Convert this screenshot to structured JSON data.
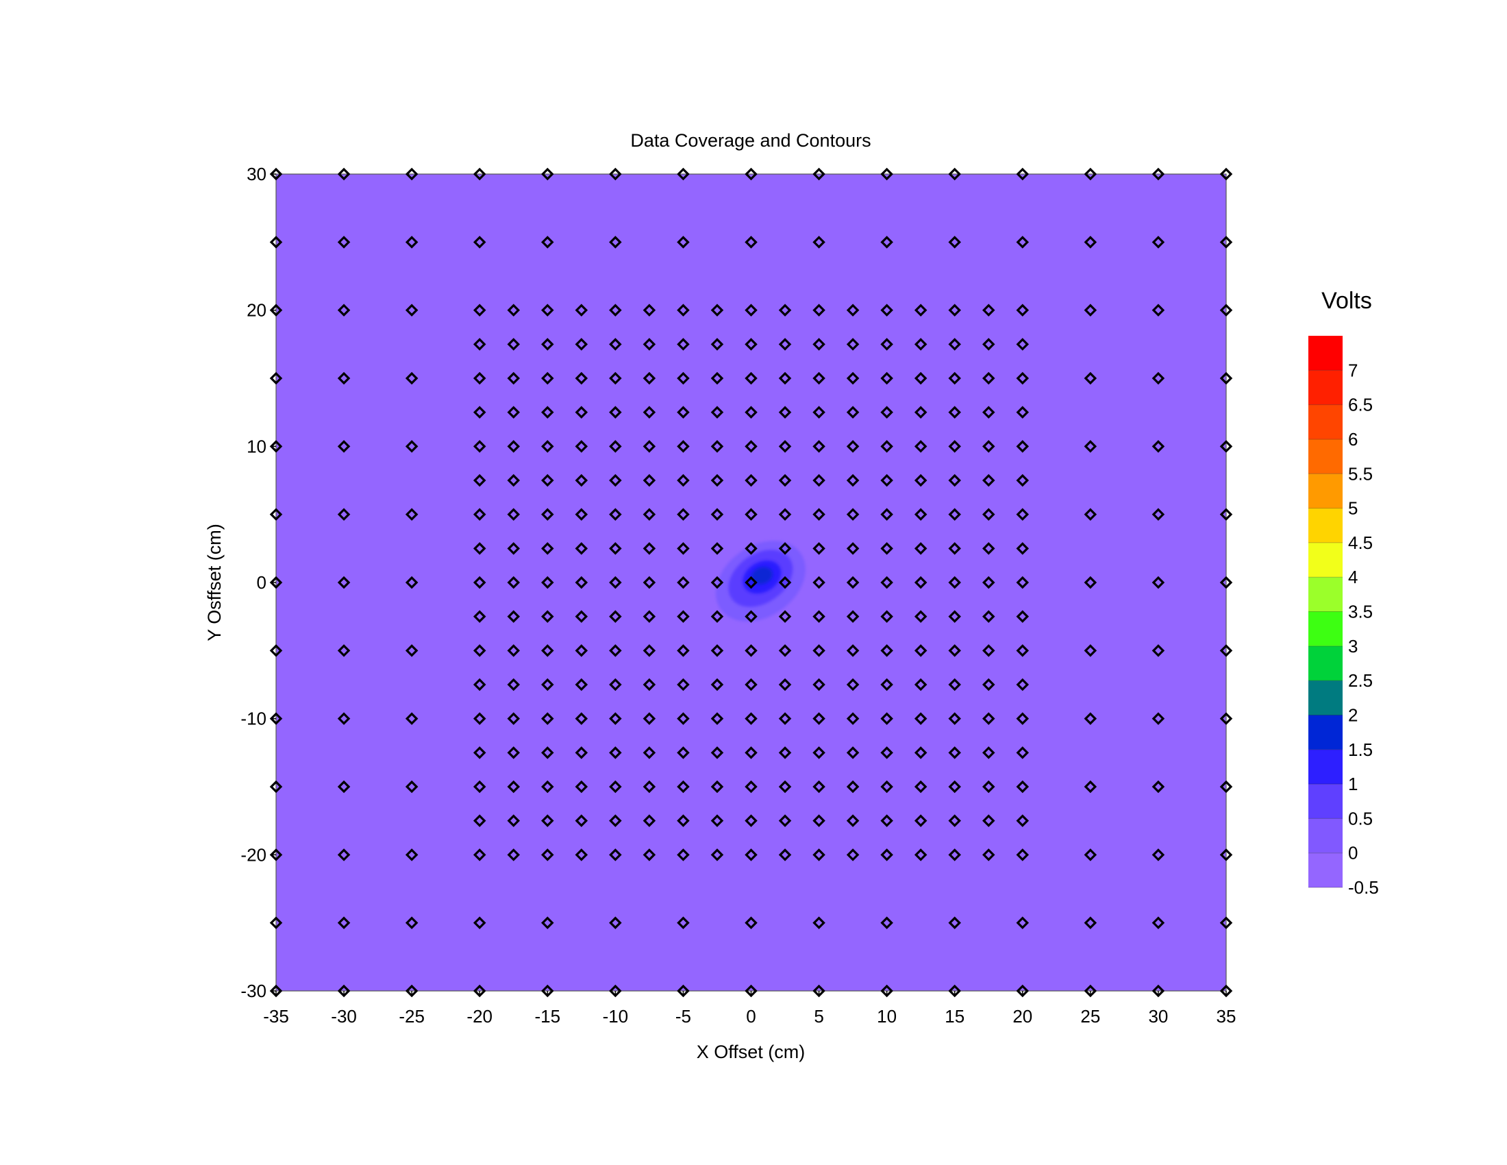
{
  "chart_data": {
    "type": "contour",
    "title": "Data Coverage and Contours",
    "xlabel": "X Offset (cm)",
    "ylabel": "Y Osffset (cm)",
    "xlim": [
      -35,
      35
    ],
    "ylim": [
      -30,
      30
    ],
    "xticks": [
      -35,
      -30,
      -25,
      -20,
      -15,
      -10,
      -5,
      0,
      5,
      10,
      15,
      20,
      25,
      30,
      35
    ],
    "yticks": [
      30,
      20,
      10,
      0,
      -10,
      -20,
      -30
    ],
    "xtick_labels": [
      "-35",
      "-30",
      "-25",
      "-20",
      "-15",
      "-10",
      "-5",
      "0",
      "5",
      "10",
      "15",
      "20",
      "25",
      "30",
      "35"
    ],
    "ytick_labels": [
      "30",
      "20",
      "10",
      "0",
      "-10",
      "-20",
      "-30"
    ],
    "background_level": [
      -0.5,
      0
    ],
    "background_color": "#9466ff",
    "peak": {
      "x": 0.5,
      "y": 0.3,
      "max_volts": 2.0
    },
    "contour_regions": [
      {
        "level": [
          0,
          0.5
        ],
        "color": "#7c5cff"
      },
      {
        "level": [
          0.5,
          1
        ],
        "color": "#5a3cff"
      },
      {
        "level": [
          1,
          1.5
        ],
        "color": "#2a1fff"
      },
      {
        "level": [
          1.5,
          2
        ],
        "color": "#0a28d4"
      }
    ],
    "coverage_grid": {
      "coarse_x": [
        -35,
        -30,
        -25,
        -20,
        -15,
        -10,
        -5,
        0,
        5,
        10,
        15,
        20,
        25,
        30,
        35
      ],
      "coarse_y": [
        30,
        25,
        20,
        15,
        10,
        5,
        0,
        -5,
        -10,
        -15,
        -20,
        -25,
        -30
      ],
      "fine_x_range": [
        -20,
        20
      ],
      "fine_y_range": [
        -20,
        20
      ],
      "fine_step": 2.5
    },
    "legend": {
      "title": "Volts",
      "position": "right",
      "bins": [
        {
          "from": -0.5,
          "to": 0,
          "color": "#9466ff"
        },
        {
          "from": 0,
          "to": 0.5,
          "color": "#8159ff"
        },
        {
          "from": 0.5,
          "to": 1,
          "color": "#5f40ff"
        },
        {
          "from": 1,
          "to": 1.5,
          "color": "#2d1fff"
        },
        {
          "from": 1.5,
          "to": 2,
          "color": "#0026d6"
        },
        {
          "from": 2,
          "to": 2.5,
          "color": "#007b80"
        },
        {
          "from": 2.5,
          "to": 3,
          "color": "#00d23a"
        },
        {
          "from": 3,
          "to": 3.5,
          "color": "#3dff12"
        },
        {
          "from": 3.5,
          "to": 4,
          "color": "#9bff2a"
        },
        {
          "from": 4,
          "to": 4.5,
          "color": "#f2ff1a"
        },
        {
          "from": 4.5,
          "to": 5,
          "color": "#ffd400"
        },
        {
          "from": 5,
          "to": 5.5,
          "color": "#ff9a00"
        },
        {
          "from": 5.5,
          "to": 6,
          "color": "#ff6a00"
        },
        {
          "from": 6,
          "to": 6.5,
          "color": "#ff4500"
        },
        {
          "from": 6.5,
          "to": 7,
          "color": "#ff2000"
        },
        {
          "from": 7,
          "to": 7.5,
          "color": "#ff0000"
        }
      ],
      "labels": [
        "7",
        "6.5",
        "6",
        "5.5",
        "5",
        "4.5",
        "4",
        "3.5",
        "3",
        "2.5",
        "2",
        "1.5",
        "1",
        "0.5",
        "0",
        "-0.5"
      ]
    }
  }
}
